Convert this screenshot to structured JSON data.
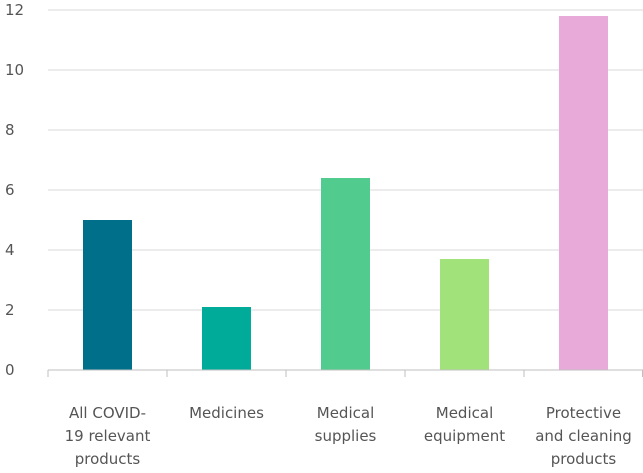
{
  "chart_data": {
    "type": "bar",
    "categories": [
      [
        "All COVID-",
        "19 relevant",
        "products"
      ],
      [
        "Medicines"
      ],
      [
        "Medical",
        "supplies"
      ],
      [
        "Medical",
        "equipment"
      ],
      [
        "Protective",
        "and cleaning",
        "products"
      ]
    ],
    "values": [
      5.0,
      2.1,
      6.4,
      3.7,
      11.8
    ],
    "colors": [
      "#006f8a",
      "#00ab9a",
      "#52cb8e",
      "#a2e27a",
      "#e8aad8"
    ],
    "ylim": [
      0,
      12
    ],
    "yticks": [
      0,
      2,
      4,
      6,
      8,
      10,
      12
    ],
    "grid": true,
    "legend": "none",
    "title": "",
    "xlabel": "",
    "ylabel": ""
  }
}
